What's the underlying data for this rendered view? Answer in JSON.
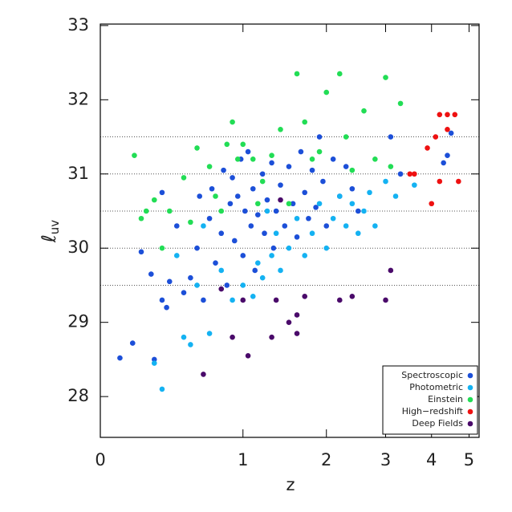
{
  "chart_data": {
    "type": "scatter",
    "x_label": "z",
    "y_label": {
      "symbol": "ℓ",
      "subscript": "uv"
    },
    "xscale": "log1p",
    "xlim": [
      0,
      5.3
    ],
    "ylim": [
      27.45,
      33.02
    ],
    "xticks": [
      0,
      1,
      2,
      3,
      4,
      5
    ],
    "yticks": [
      28,
      29,
      30,
      31,
      32,
      33
    ],
    "hlines": [
      29.5,
      30,
      30.5,
      31,
      31.5
    ],
    "legend": "lower right",
    "series": [
      {
        "name": "Spectroscopic",
        "color": "#1c4fd8",
        "x": [
          0.1,
          0.17,
          0.3,
          0.22,
          0.28,
          0.35,
          0.38,
          0.4,
          0.35,
          0.45,
          0.5,
          0.55,
          0.6,
          0.62,
          0.65,
          0.7,
          0.72,
          0.75,
          0.8,
          0.82,
          0.85,
          0.88,
          0.9,
          0.92,
          0.95,
          0.98,
          1.0,
          1.02,
          1.05,
          1.08,
          1.1,
          1.12,
          1.15,
          1.2,
          1.22,
          1.25,
          1.3,
          1.32,
          1.35,
          1.4,
          1.45,
          1.5,
          1.55,
          1.6,
          1.65,
          1.7,
          1.75,
          1.8,
          1.85,
          1.9,
          1.95,
          2.0,
          2.1,
          2.2,
          2.3,
          2.4,
          2.5,
          3.1,
          3.3,
          4.3,
          4.5,
          4.4
        ],
        "y": [
          28.52,
          28.72,
          28.5,
          29.95,
          29.65,
          29.3,
          29.2,
          29.55,
          30.75,
          30.3,
          29.4,
          29.6,
          30.0,
          30.7,
          29.3,
          30.4,
          30.8,
          29.8,
          30.2,
          31.05,
          29.5,
          30.6,
          30.95,
          30.1,
          30.7,
          31.2,
          29.9,
          30.5,
          31.3,
          30.3,
          30.8,
          29.7,
          30.45,
          31.0,
          30.2,
          30.65,
          31.15,
          30.0,
          30.5,
          30.85,
          30.3,
          31.1,
          30.6,
          30.15,
          31.3,
          30.75,
          30.4,
          31.05,
          30.55,
          31.5,
          30.9,
          30.3,
          31.2,
          30.7,
          31.1,
          30.8,
          30.5,
          31.5,
          31.0,
          31.15,
          31.55,
          31.25
        ]
      },
      {
        "name": "Photometric",
        "color": "#14b2f2",
        "x": [
          0.3,
          0.35,
          0.5,
          0.55,
          0.7,
          0.9,
          1.0,
          1.1,
          1.15,
          1.2,
          1.3,
          1.35,
          1.4,
          1.5,
          1.6,
          1.7,
          1.8,
          1.9,
          2.0,
          2.1,
          2.2,
          2.3,
          2.4,
          2.5,
          2.6,
          2.7,
          2.8,
          3.0,
          3.2,
          3.6,
          0.6,
          0.8,
          0.45,
          0.65,
          1.25
        ],
        "y": [
          28.45,
          28.1,
          28.8,
          28.7,
          28.85,
          29.3,
          29.5,
          29.35,
          29.8,
          29.6,
          29.9,
          30.2,
          29.7,
          30.0,
          30.4,
          29.9,
          30.2,
          30.6,
          30.0,
          30.4,
          30.7,
          30.3,
          30.6,
          30.2,
          30.5,
          30.75,
          30.3,
          30.9,
          30.7,
          30.85,
          29.5,
          29.7,
          29.9,
          30.3,
          30.5
        ]
      },
      {
        "name": "Einstein",
        "color": "#22dd55",
        "x": [
          0.18,
          0.25,
          0.22,
          0.3,
          0.35,
          0.4,
          0.5,
          0.55,
          0.6,
          0.7,
          0.75,
          0.8,
          0.85,
          0.9,
          0.95,
          1.0,
          1.1,
          1.2,
          1.3,
          1.4,
          1.5,
          1.6,
          1.7,
          1.8,
          1.9,
          2.0,
          2.2,
          2.3,
          2.6,
          2.8,
          3.0,
          3.1,
          3.3,
          2.4,
          1.15
        ],
        "y": [
          31.25,
          30.5,
          30.4,
          30.65,
          30.0,
          30.5,
          30.95,
          30.35,
          31.35,
          31.1,
          30.7,
          30.5,
          31.4,
          31.7,
          31.2,
          31.4,
          31.2,
          30.9,
          31.25,
          31.6,
          30.6,
          32.35,
          31.7,
          31.2,
          31.3,
          32.1,
          32.35,
          31.5,
          31.85,
          31.2,
          32.3,
          31.1,
          31.95,
          31.05,
          30.6
        ]
      },
      {
        "name": "High−redshift",
        "color": "#ee1111",
        "x": [
          3.5,
          3.6,
          4.0,
          4.2,
          4.7,
          3.9,
          4.1,
          4.2,
          4.4,
          4.6,
          4.4
        ],
        "y": [
          31.0,
          31.0,
          30.6,
          30.9,
          30.9,
          31.35,
          31.5,
          31.8,
          31.8,
          31.8,
          31.6
        ]
      },
      {
        "name": "Deep Fields",
        "color": "#4a0a6a",
        "x": [
          0.65,
          0.9,
          1.0,
          1.05,
          1.3,
          1.35,
          1.5,
          1.6,
          1.6,
          1.7,
          2.2,
          2.4,
          3.0,
          3.1,
          1.4,
          0.8
        ],
        "y": [
          28.3,
          28.8,
          29.3,
          28.55,
          28.8,
          29.3,
          29.0,
          29.1,
          28.85,
          29.35,
          29.3,
          29.35,
          29.3,
          29.7,
          30.65,
          29.45
        ]
      }
    ]
  }
}
